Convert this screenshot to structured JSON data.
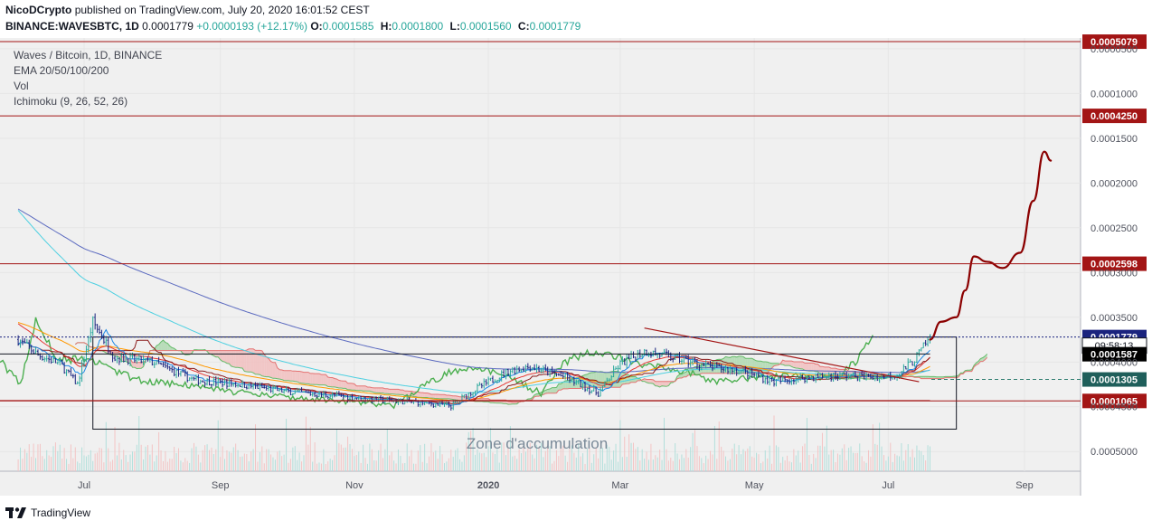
{
  "header": {
    "author": "NicoDCrypto",
    "published_text": "published on TradingView.com, July 20, 2020 16:01:52 CEST",
    "symbol": "BINANCE:WAVESBTC, 1D",
    "last": "0.0001779",
    "change": "+0.0000193 (+12.17%)",
    "ohlc": [
      {
        "key": "O:",
        "value": "0.0001585"
      },
      {
        "key": "H:",
        "value": "0.0001800"
      },
      {
        "key": "L:",
        "value": "0.0001560"
      },
      {
        "key": "C:",
        "value": "0.0001779"
      }
    ]
  },
  "legend": {
    "title": "Waves / Bitcoin, 1D, BINANCE",
    "ema": "EMA 20/50/100/200",
    "vol": "Vol",
    "ichimoku": "Ichimoku (9, 26, 52, 26)"
  },
  "annotation": "Zone d'accumulation",
  "footer": {
    "brand": "TradingView",
    "logo_icon": "tradingview-logo-icon"
  },
  "colors": {
    "up": "#26a69a",
    "down": "#1a237e",
    "resistance": "#a31515",
    "forecast": "#8b0000",
    "ema20": "#e53935",
    "ema50": "#ff9800",
    "ema100": "#4dd0e1",
    "ema200": "#5c6bc0",
    "kijun": "#8b1a1a",
    "tenkan": "#1e88e5",
    "chikou": "#4caf50",
    "cloud_bear": "#f2b8b8",
    "cloud_bull": "#a5d6a7"
  },
  "chart_data": {
    "type": "candlestick",
    "symbol": "WAVESBTC",
    "timeframe": "1D",
    "exchange": "BINANCE",
    "x_tick_labels": [
      "Jul",
      "Sep",
      "Nov",
      "2020",
      "Mar",
      "May",
      "Jul",
      "Sep"
    ],
    "y_tick_labels": [
      "0.0005000",
      "0.0004500",
      "0.0004000",
      "0.0003500",
      "0.0003000",
      "0.0002500",
      "0.0002000",
      "0.0001500",
      "0.0001000",
      "0.0000500"
    ],
    "ylim": [
      2.8e-05,
      0.000512
    ],
    "x_ticks": [
      {
        "label": "Jul",
        "date": "2019-07-01"
      },
      {
        "label": "Sep",
        "date": "2019-09-01"
      },
      {
        "label": "Nov",
        "date": "2019-11-01"
      },
      {
        "label": "2020",
        "date": "2020-01-01"
      },
      {
        "label": "Mar",
        "date": "2020-03-01"
      },
      {
        "label": "May",
        "date": "2020-05-01"
      },
      {
        "label": "Jul",
        "date": "2020-07-01"
      },
      {
        "label": "Sep",
        "date": "2020-09-01"
      }
    ],
    "y_ticks": [
      5e-05,
      0.0001,
      0.00015,
      0.0002,
      0.00025,
      0.0003,
      0.00035,
      0.0004,
      0.00045,
      0.0005
    ],
    "price_levels": [
      {
        "label": "0.0005079",
        "value": 0.0005079,
        "style": "resistance"
      },
      {
        "label": "0.0004250",
        "value": 0.000425,
        "style": "resistance"
      },
      {
        "label": "0.0002598",
        "value": 0.0002598,
        "style": "resistance"
      },
      {
        "label": "0.0001779",
        "value": 0.0001779,
        "style": "last"
      },
      {
        "label": "0.0001587",
        "value": 0.0001587,
        "style": "timer",
        "timer": "09:58:13"
      },
      {
        "label": "0.0001305",
        "value": 0.0001305,
        "style": "cloud"
      },
      {
        "label": "0.0001065",
        "value": 0.0001065,
        "style": "resistance"
      }
    ],
    "price_path": [
      [
        "2019-06-01",
        0.000175
      ],
      [
        "2019-06-10",
        0.000158
      ],
      [
        "2019-06-20",
        0.000148
      ],
      [
        "2019-06-28",
        0.000125
      ],
      [
        "2019-07-05",
        0.000195
      ],
      [
        "2019-07-15",
        0.000155
      ],
      [
        "2019-08-01",
        0.00015
      ],
      [
        "2019-08-20",
        0.00013
      ],
      [
        "2019-09-10",
        0.000125
      ],
      [
        "2019-10-01",
        0.000117
      ],
      [
        "2019-10-20",
        0.000113
      ],
      [
        "2019-11-10",
        0.000108
      ],
      [
        "2019-11-30",
        0.000105
      ],
      [
        "2019-12-15",
        0.000101
      ],
      [
        "2019-12-25",
        0.000118
      ],
      [
        "2020-01-10",
        0.00014
      ],
      [
        "2020-01-20",
        0.000145
      ],
      [
        "2020-02-05",
        0.000133
      ],
      [
        "2020-02-20",
        0.000115
      ],
      [
        "2020-03-01",
        0.000148
      ],
      [
        "2020-03-12",
        0.000162
      ],
      [
        "2020-03-25",
        0.000155
      ],
      [
        "2020-04-10",
        0.000145
      ],
      [
        "2020-04-25",
        0.00014
      ],
      [
        "2020-05-10",
        0.000128
      ],
      [
        "2020-05-25",
        0.000133
      ],
      [
        "2020-06-10",
        0.000135
      ],
      [
        "2020-06-25",
        0.000133
      ],
      [
        "2020-07-05",
        0.000136
      ],
      [
        "2020-07-12",
        0.00015
      ],
      [
        "2020-07-18",
        0.00017
      ],
      [
        "2020-07-20",
        0.0001779
      ]
    ],
    "accumulation_zone": {
      "start": "2019-07-05",
      "end": "2020-08-01",
      "top": 0.0001779,
      "bottom": 7.5e-05
    },
    "inner_range": {
      "start": "2019-06-01",
      "end": "2020-07-20",
      "top": 0.000159,
      "bottom": 0.000107
    },
    "descending_trendline": [
      [
        "2020-03-12",
        0.000188
      ],
      [
        "2020-07-15",
        0.000128
      ]
    ],
    "forecast_path": [
      [
        "2020-07-20",
        0.000175
      ],
      [
        "2020-07-25",
        0.000195
      ],
      [
        "2020-08-01",
        0.0002
      ],
      [
        "2020-08-05",
        0.00023
      ],
      [
        "2020-08-09",
        0.000268
      ],
      [
        "2020-08-15",
        0.000262
      ],
      [
        "2020-08-22",
        0.000255
      ],
      [
        "2020-08-30",
        0.000272
      ],
      [
        "2020-09-05",
        0.00033
      ],
      [
        "2020-09-10",
        0.000385
      ],
      [
        "2020-09-13",
        0.000375
      ]
    ]
  }
}
